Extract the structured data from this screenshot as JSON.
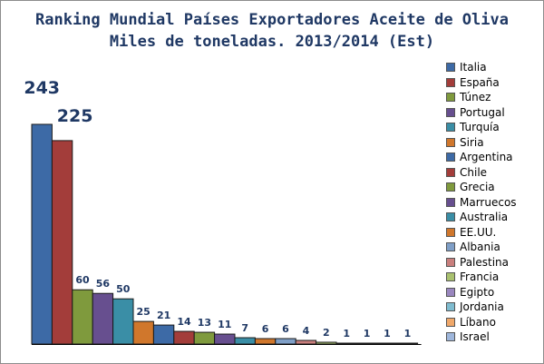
{
  "chart_data": {
    "type": "bar",
    "title": "Ranking Mundial Países Exportadores Aceite de Oliva",
    "subtitle": "Miles de toneladas. 2013/2014 (Est)",
    "xlabel": "",
    "ylabel": "",
    "ylim": [
      0,
      250
    ],
    "grid": false,
    "legend_position": "right",
    "categories": [
      "Italia",
      "España",
      "Túnez",
      "Portugal",
      "Turquía",
      "Siria",
      "Argentina",
      "Chile",
      "Grecia",
      "Marruecos",
      "Australia",
      "EE.UU.",
      "Albania",
      "Palestina",
      "Francia",
      "Egipto",
      "Jordania",
      "Líbano",
      "Israel"
    ],
    "values": [
      243,
      225,
      60,
      56,
      50,
      25,
      21,
      14,
      13,
      11,
      7,
      6,
      6,
      4,
      2,
      1,
      1,
      1,
      1
    ],
    "colors": [
      "#3d6aa6",
      "#a33d3a",
      "#7f9a3d",
      "#674f8f",
      "#3a8ea6",
      "#d0772c",
      "#3d6aa6",
      "#a33d3a",
      "#7f9a3d",
      "#674f8f",
      "#3a8ea6",
      "#d0772c",
      "#7f9fc7",
      "#c97f7d",
      "#a9c16f",
      "#9a87bf",
      "#7fbcd0",
      "#f0a86a",
      "#9fb7dc"
    ]
  }
}
